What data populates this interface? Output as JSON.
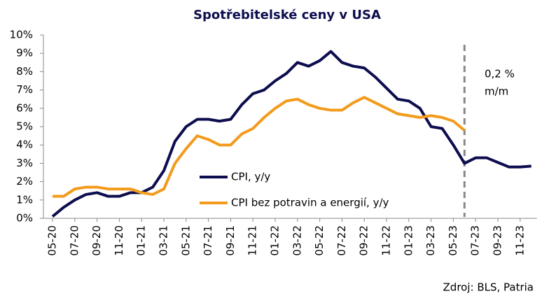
{
  "chart_data": {
    "type": "line",
    "title": "Spotřebitelské ceny v USA",
    "categories": [
      "05-20",
      null,
      "07-20",
      null,
      "09-20",
      null,
      "11-20",
      null,
      "01-21",
      null,
      "03-21",
      null,
      "05-21",
      null,
      "07-21",
      null,
      "09-21",
      null,
      "11-21",
      null,
      "01-22",
      null,
      "03-22",
      null,
      "05-22",
      null,
      "07-22",
      null,
      "09-22",
      null,
      "11-22",
      null,
      "01-23",
      null,
      "03-23",
      null,
      "05-23",
      null,
      "07-23",
      null,
      "09-23",
      null,
      "11-23",
      null
    ],
    "series": [
      {
        "name": "CPI, y/y",
        "color": "#0d0d4f",
        "values": [
          0.1,
          0.6,
          1.0,
          1.3,
          1.4,
          1.2,
          1.2,
          1.4,
          1.4,
          1.7,
          2.6,
          4.2,
          5.0,
          5.4,
          5.4,
          5.3,
          5.4,
          6.2,
          6.8,
          7.0,
          7.5,
          7.9,
          8.5,
          8.3,
          8.6,
          9.1,
          8.5,
          8.3,
          8.2,
          7.7,
          7.1,
          6.5,
          6.4,
          6.0,
          5.0,
          4.9,
          4.0,
          3.0,
          3.3,
          3.3,
          3.05,
          2.8,
          2.8,
          2.85
        ]
      },
      {
        "name": "CPI bez potravin a energií, y/y",
        "color": "#f29b1c",
        "values": [
          1.2,
          1.2,
          1.6,
          1.7,
          1.7,
          1.6,
          1.6,
          1.6,
          1.4,
          1.3,
          1.6,
          3.0,
          3.8,
          4.5,
          4.3,
          4.0,
          4.0,
          4.6,
          4.9,
          5.5,
          6.0,
          6.4,
          6.5,
          6.2,
          6.0,
          5.9,
          5.9,
          6.3,
          6.6,
          6.3,
          6.0,
          5.7,
          5.6,
          5.5,
          5.6,
          5.5,
          5.3,
          4.8,
          null,
          null,
          null,
          null,
          null,
          null
        ]
      }
    ],
    "ylim": [
      0,
      10
    ],
    "yticks": [
      {
        "value": 0,
        "label": "0%"
      },
      {
        "value": 1,
        "label": "1%"
      },
      {
        "value": 2,
        "label": "2%"
      },
      {
        "value": 3,
        "label": "3%"
      },
      {
        "value": 4,
        "label": "4%"
      },
      {
        "value": 5,
        "label": "5%"
      },
      {
        "value": 6,
        "label": "6%"
      },
      {
        "value": 7,
        "label": "7%"
      },
      {
        "value": 8,
        "label": "8%"
      },
      {
        "value": 9,
        "label": "9%"
      },
      {
        "value": 10,
        "label": "10%"
      }
    ],
    "annotation": [
      "0,2 %",
      "m/m"
    ],
    "source": "Zdroj: BLS, Patria"
  }
}
